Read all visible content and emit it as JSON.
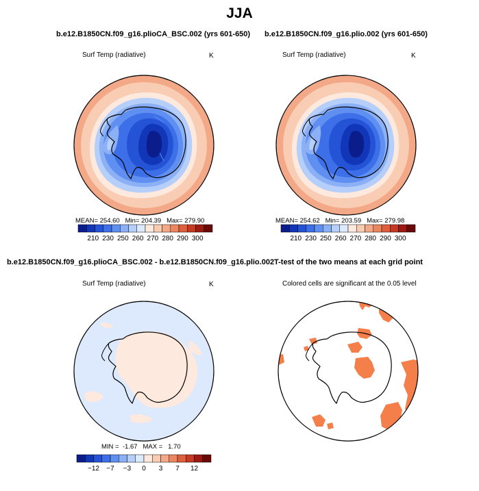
{
  "page": {
    "title": "JJA"
  },
  "panels": [
    {
      "case_title": "b.e12.B1850CN.f09_g16.plioCA_BSC.002 (yrs 601-650)",
      "variable": "Surf Temp (radiative)",
      "units": "K",
      "stats": {
        "mean_label": "MEAN=",
        "mean": "254.60",
        "min_label": "Min=",
        "min": "204.39",
        "max_label": "Max=",
        "max": "279.90"
      },
      "colorbar": {
        "ticks": [
          "210",
          "230",
          "250",
          "260",
          "270",
          "280",
          "290",
          "300"
        ],
        "colors": [
          "#0a1d8a",
          "#1236b8",
          "#2453d6",
          "#3d6fe8",
          "#5f8ff0",
          "#8bb0f5",
          "#b5cffa",
          "#dde9fd",
          "#fde9dd",
          "#f9cdb3",
          "#f3a987",
          "#eb8660",
          "#df5f3c",
          "#c63a23",
          "#9d1a12",
          "#6a0a08"
        ]
      }
    },
    {
      "case_title": "b.e12.B1850CN.f09_g16.plio.002 (yrs 601-650)",
      "variable": "Surf Temp (radiative)",
      "units": "K",
      "stats": {
        "mean_label": "MEAN=",
        "mean": "254.62",
        "min_label": "Min=",
        "min": "203.59",
        "max_label": "Max=",
        "max": "279.98"
      },
      "colorbar": {
        "ticks": [
          "210",
          "230",
          "250",
          "260",
          "270",
          "280",
          "290",
          "300"
        ],
        "colors": [
          "#0a1d8a",
          "#1236b8",
          "#2453d6",
          "#3d6fe8",
          "#5f8ff0",
          "#8bb0f5",
          "#b5cffa",
          "#dde9fd",
          "#fde9dd",
          "#f9cdb3",
          "#f3a987",
          "#eb8660",
          "#df5f3c",
          "#c63a23",
          "#9d1a12",
          "#6a0a08"
        ]
      }
    },
    {
      "case_title": "b.e12.B1850CN.f09_g16.plioCA_BSC.002 - b.e12.B1850CN.f09_g16.plio.002",
      "variable": "Surf Temp (radiative)",
      "units": "K",
      "stats": {
        "min_label": "MIN =",
        "min": "-1.67",
        "max_label": "MAX =",
        "max": "1.70"
      },
      "colorbar": {
        "ticks": [
          "−12",
          "−7",
          "−3",
          "0",
          "3",
          "7",
          "12"
        ],
        "colors": [
          "#0a1d8a",
          "#1236b8",
          "#2453d6",
          "#3d6fe8",
          "#5f8ff0",
          "#8bb0f5",
          "#b5cffa",
          "#dde9fd",
          "#fde9dd",
          "#f9cdb3",
          "#f3a987",
          "#eb8660",
          "#df5f3c",
          "#c63a23",
          "#9d1a12",
          "#6a0a08"
        ]
      }
    },
    {
      "case_title": "T-test of the two means at each grid point",
      "subtitle": "Colored cells are significant at the 0.05 level",
      "significance_color": "#f47f4a"
    }
  ]
}
